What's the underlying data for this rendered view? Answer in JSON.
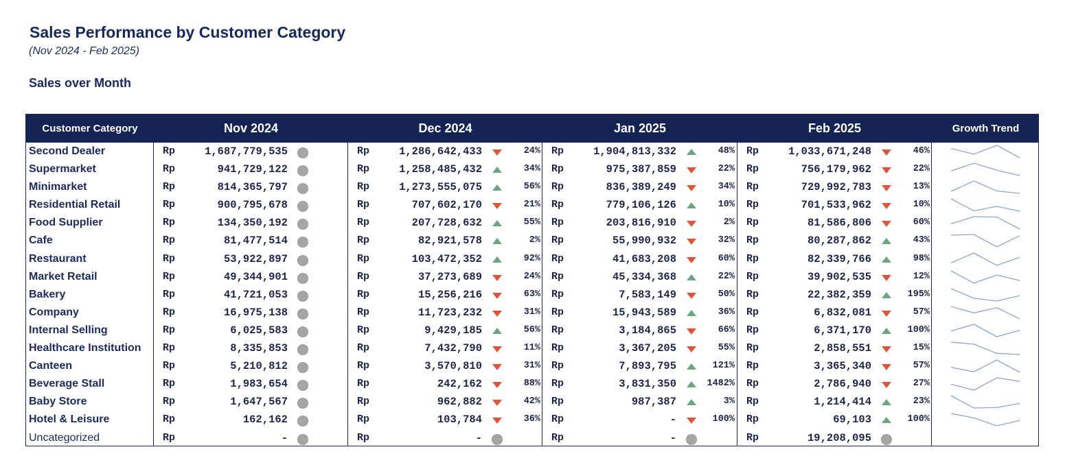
{
  "header": {
    "title": "Sales Performance by Customer Category",
    "subtitle": "(Nov 2024 - Feb 2025)",
    "section": "Sales over Month"
  },
  "table": {
    "columns": {
      "category": "Customer Category",
      "months": [
        "Nov 2024",
        "Dec 2024",
        "Jan 2025",
        "Feb 2025"
      ],
      "trend": "Growth Trend"
    },
    "currency": "Rp",
    "colors": {
      "up": "#6aa682",
      "down": "#e0553a",
      "neutral": "#a6a6a6",
      "header_bg": "#152254",
      "spark": "#8ea6cc"
    },
    "rows": [
      {
        "name": "Second Dealer",
        "values": [
          1687779535,
          1286642433,
          1904813332,
          1033671248
        ],
        "display": [
          "1,687,779,535",
          "1,286,642,433",
          "1,904,813,332",
          "1,033,671,248"
        ],
        "pct": [
          "",
          "24%",
          "48%",
          "46%"
        ],
        "dir": [
          "neutral",
          "down",
          "up",
          "down"
        ]
      },
      {
        "name": "Supermarket",
        "values": [
          941729122,
          1258485432,
          975387859,
          756179962
        ],
        "display": [
          "941,729,122",
          "1,258,485,432",
          "975,387,859",
          "756,179,962"
        ],
        "pct": [
          "",
          "34%",
          "22%",
          "22%"
        ],
        "dir": [
          "neutral",
          "up",
          "down",
          "down"
        ]
      },
      {
        "name": "Minimarket",
        "values": [
          814365797,
          1273555075,
          836389249,
          729992783
        ],
        "display": [
          "814,365,797",
          "1,273,555,075",
          "836,389,249",
          "729,992,783"
        ],
        "pct": [
          "",
          "56%",
          "34%",
          "13%"
        ],
        "dir": [
          "neutral",
          "up",
          "down",
          "down"
        ]
      },
      {
        "name": "Residential Retail",
        "values": [
          900795678,
          707602170,
          779106126,
          701533962
        ],
        "display": [
          "900,795,678",
          "707,602,170",
          "779,106,126",
          "701,533,962"
        ],
        "pct": [
          "",
          "21%",
          "10%",
          "10%"
        ],
        "dir": [
          "neutral",
          "down",
          "up",
          "down"
        ]
      },
      {
        "name": "Food Supplier",
        "values": [
          134350192,
          207728632,
          203816910,
          81586806
        ],
        "display": [
          "134,350,192",
          "207,728,632",
          "203,816,910",
          "81,586,806"
        ],
        "pct": [
          "",
          "55%",
          "2%",
          "60%"
        ],
        "dir": [
          "neutral",
          "up",
          "down",
          "down"
        ]
      },
      {
        "name": "Cafe",
        "values": [
          81477514,
          82921578,
          55990932,
          80287862
        ],
        "display": [
          "81,477,514",
          "82,921,578",
          "55,990,932",
          "80,287,862"
        ],
        "pct": [
          "",
          "2%",
          "32%",
          "43%"
        ],
        "dir": [
          "neutral",
          "up",
          "down",
          "up"
        ]
      },
      {
        "name": "Restaurant",
        "values": [
          53922897,
          103472352,
          41683208,
          82339766
        ],
        "display": [
          "53,922,897",
          "103,472,352",
          "41,683,208",
          "82,339,766"
        ],
        "pct": [
          "",
          "92%",
          "60%",
          "98%"
        ],
        "dir": [
          "neutral",
          "up",
          "down",
          "up"
        ]
      },
      {
        "name": "Market Retail",
        "values": [
          49344901,
          37273689,
          45334368,
          39902535
        ],
        "display": [
          "49,344,901",
          "37,273,689",
          "45,334,368",
          "39,902,535"
        ],
        "pct": [
          "",
          "24%",
          "22%",
          "12%"
        ],
        "dir": [
          "neutral",
          "down",
          "up",
          "down"
        ]
      },
      {
        "name": "Bakery",
        "values": [
          41721053,
          15256216,
          7583149,
          22382359
        ],
        "display": [
          "41,721,053",
          "15,256,216",
          "7,583,149",
          "22,382,359"
        ],
        "pct": [
          "",
          "63%",
          "50%",
          "195%"
        ],
        "dir": [
          "neutral",
          "down",
          "down",
          "up"
        ]
      },
      {
        "name": "Company",
        "values": [
          16975138,
          11723232,
          15943589,
          6832081
        ],
        "display": [
          "16,975,138",
          "11,723,232",
          "15,943,589",
          "6,832,081"
        ],
        "pct": [
          "",
          "31%",
          "36%",
          "57%"
        ],
        "dir": [
          "neutral",
          "down",
          "up",
          "down"
        ]
      },
      {
        "name": "Internal Selling",
        "values": [
          6025583,
          9429185,
          3184865,
          6371170
        ],
        "display": [
          "6,025,583",
          "9,429,185",
          "3,184,865",
          "6,371,170"
        ],
        "pct": [
          "",
          "56%",
          "66%",
          "100%"
        ],
        "dir": [
          "neutral",
          "up",
          "down",
          "up"
        ]
      },
      {
        "name": "Healthcare Institution",
        "values": [
          8335853,
          7432790,
          3367205,
          2858551
        ],
        "display": [
          "8,335,853",
          "7,432,790",
          "3,367,205",
          "2,858,551"
        ],
        "pct": [
          "",
          "11%",
          "55%",
          "15%"
        ],
        "dir": [
          "neutral",
          "down",
          "down",
          "down"
        ]
      },
      {
        "name": "Canteen",
        "values": [
          5210812,
          3570810,
          7893795,
          3365340
        ],
        "display": [
          "5,210,812",
          "3,570,810",
          "7,893,795",
          "3,365,340"
        ],
        "pct": [
          "",
          "31%",
          "121%",
          "57%"
        ],
        "dir": [
          "neutral",
          "down",
          "up",
          "down"
        ]
      },
      {
        "name": "Beverage Stall",
        "values": [
          1983654,
          242162,
          3831350,
          2786940
        ],
        "display": [
          "1,983,654",
          "242,162",
          "3,831,350",
          "2,786,940"
        ],
        "pct": [
          "",
          "88%",
          "1482%",
          "27%"
        ],
        "dir": [
          "neutral",
          "down",
          "up",
          "down"
        ]
      },
      {
        "name": "Baby Store",
        "values": [
          1647567,
          962882,
          987387,
          1214414
        ],
        "display": [
          "1,647,567",
          "962,882",
          "987,387",
          "1,214,414"
        ],
        "pct": [
          "",
          "42%",
          "3%",
          "23%"
        ],
        "dir": [
          "neutral",
          "down",
          "up",
          "up"
        ]
      },
      {
        "name": "Hotel & Leisure",
        "values": [
          162162,
          103784,
          0,
          69103
        ],
        "display": [
          "162,162",
          "103,784",
          "-",
          "69,103"
        ],
        "pct": [
          "",
          "36%",
          "100%",
          "100%"
        ],
        "dir": [
          "neutral",
          "down",
          "down",
          "up"
        ]
      },
      {
        "name": "Uncategorized",
        "plain": true,
        "values": [
          0,
          0,
          0,
          19208095
        ],
        "display": [
          "-",
          "-",
          "-",
          "19,208,095"
        ],
        "pct": [
          "",
          "",
          "",
          ""
        ],
        "dir": [
          "neutral",
          "neutral",
          "neutral",
          "neutral"
        ],
        "no_trend": true
      }
    ]
  }
}
